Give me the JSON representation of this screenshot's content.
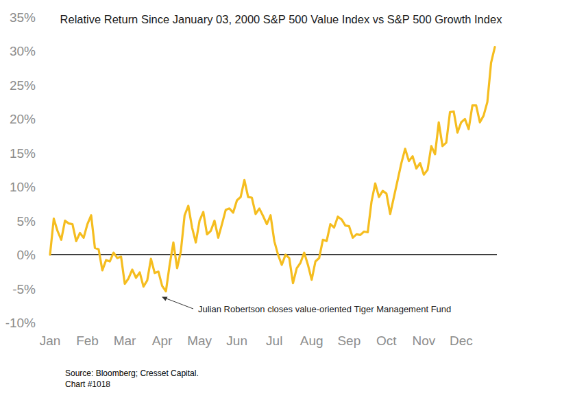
{
  "chart_data": {
    "type": "line",
    "title": "Relative Return Since January 03, 2000 S&P 500 Value Index vs S&P 500 Growth Index",
    "categories": [
      "Jan",
      null,
      null,
      null,
      null,
      null,
      null,
      null,
      null,
      null,
      "Feb",
      null,
      null,
      null,
      null,
      null,
      null,
      null,
      null,
      null,
      "Mar",
      null,
      null,
      null,
      null,
      null,
      null,
      null,
      null,
      null,
      "Apr",
      null,
      null,
      null,
      null,
      null,
      null,
      null,
      null,
      null,
      "May",
      null,
      null,
      null,
      null,
      null,
      null,
      null,
      null,
      null,
      "Jun",
      null,
      null,
      null,
      null,
      null,
      null,
      null,
      null,
      null,
      "Jul",
      null,
      null,
      null,
      null,
      null,
      null,
      null,
      null,
      null,
      "Aug",
      null,
      null,
      null,
      null,
      null,
      null,
      null,
      null,
      null,
      "Sep",
      null,
      null,
      null,
      null,
      null,
      null,
      null,
      null,
      null,
      "Oct",
      null,
      null,
      null,
      null,
      null,
      null,
      null,
      null,
      null,
      "Nov",
      null,
      null,
      null,
      null,
      null,
      null,
      null,
      null,
      null,
      "Dec",
      null,
      null,
      null,
      null,
      null,
      null,
      null,
      null,
      null
    ],
    "values": [
      0,
      5.3,
      3.5,
      2.2,
      5.0,
      4.6,
      4.5,
      2.0,
      3.2,
      2.5,
      4.5,
      5.8,
      1.0,
      0.8,
      -2.3,
      -0.8,
      -1.0,
      0.3,
      -0.5,
      -0.3,
      -4.3,
      -3.5,
      -2.2,
      -3.4,
      -2.6,
      -4.7,
      -3.8,
      -0.6,
      -2.7,
      -2.5,
      -4.6,
      -5.4,
      -1.5,
      1.8,
      -2.0,
      0.5,
      5.8,
      7.2,
      4.0,
      1.8,
      5.0,
      6.3,
      3.0,
      3.5,
      5.0,
      2.5,
      4.5,
      6.6,
      6.8,
      6.2,
      8.0,
      8.5,
      11.0,
      8.5,
      8.4,
      6.0,
      6.8,
      5.7,
      4.5,
      5.8,
      2.0,
      0.0,
      -1.5,
      0.0,
      -0.5,
      -4.2,
      -2.0,
      -1.2,
      0.3,
      -1.5,
      -3.7,
      -1.0,
      -0.5,
      2.2,
      2.0,
      4.5,
      4.0,
      5.6,
      5.2,
      4.3,
      4.2,
      2.5,
      3.0,
      2.9,
      3.4,
      3.3,
      7.8,
      10.5,
      8.5,
      9.4,
      9.0,
      6.0,
      8.5,
      11.0,
      13.5,
      15.6,
      13.8,
      14.5,
      12.7,
      13.5,
      11.8,
      12.5,
      16.0,
      14.8,
      19.5,
      16.0,
      16.5,
      21.0,
      21.1,
      18.0,
      19.5,
      20.0,
      18.5,
      22.0,
      22.0,
      19.5,
      20.5,
      22.5,
      28.3,
      30.6
    ],
    "color": "#f5bd1f",
    "ylim": [
      -10,
      35
    ],
    "yticks": [
      {
        "value": -10,
        "label": "-10%"
      },
      {
        "value": -5,
        "label": "-5%"
      },
      {
        "value": 0,
        "label": "0%"
      },
      {
        "value": 5,
        "label": "5%"
      },
      {
        "value": 10,
        "label": "10%"
      },
      {
        "value": 15,
        "label": "15%"
      },
      {
        "value": 20,
        "label": "20%"
      },
      {
        "value": 25,
        "label": "25%"
      },
      {
        "value": 30,
        "label": "30%"
      },
      {
        "value": 35,
        "label": "35%"
      }
    ],
    "reference_line": 0,
    "grid": false,
    "annotation": "Julian Robertson closes value-oriented Tiger Management Fund",
    "source": "Source: Bloomberg; Cresset Capital.",
    "footnote": "Chart #1018"
  }
}
